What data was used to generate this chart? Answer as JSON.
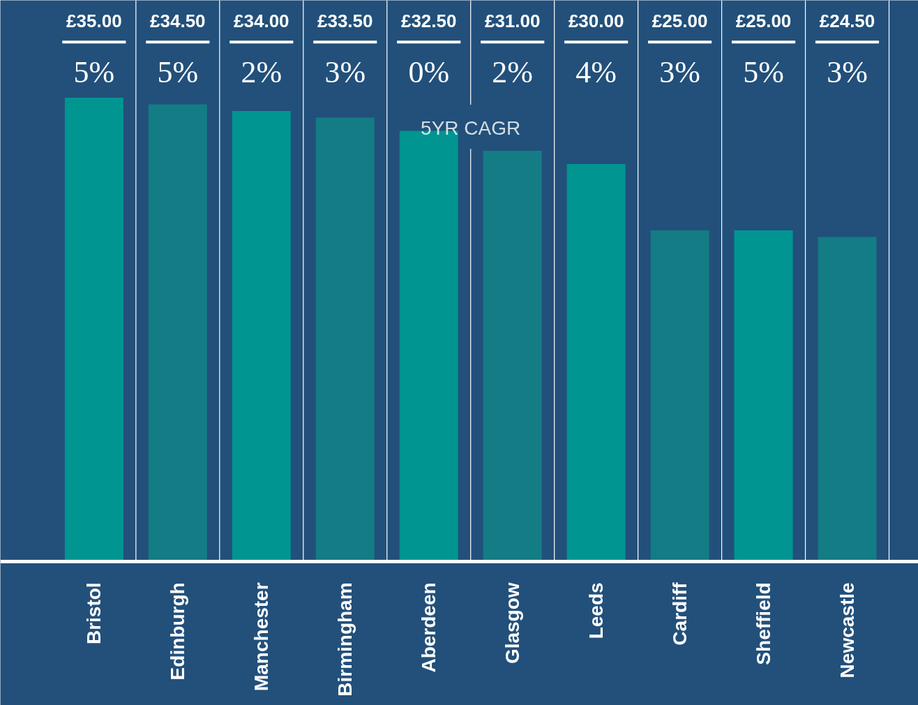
{
  "chart_data": {
    "type": "bar",
    "categories": [
      "Bristol",
      "Edinburgh",
      "Manchester",
      "Birmingham",
      "Aberdeen",
      "Glasgow",
      "Leeds",
      "Cardiff",
      "Sheffield",
      "Newcastle"
    ],
    "values": [
      35,
      34.5,
      34,
      33.5,
      32.5,
      31,
      30,
      25,
      25,
      24.5
    ],
    "value_labels": [
      "£35.00",
      "£34.50",
      "£34.00",
      "£33.50",
      "£32.50",
      "£31.00",
      "£30.00",
      "£25.00",
      "£25.00",
      "£24.50"
    ],
    "colors": [
      "#009590",
      "#137c84",
      "#009590",
      "#137c84",
      "#009590",
      "#137c84",
      "#009590",
      "#137c84",
      "#009590",
      "#137c84"
    ],
    "annotations": [
      "5%",
      "5%",
      "2%",
      "3%",
      "0%",
      "2%",
      "4%",
      "3%",
      "5%",
      "3%",
      "5YR CAGR"
    ],
    "grid": false
  }
}
